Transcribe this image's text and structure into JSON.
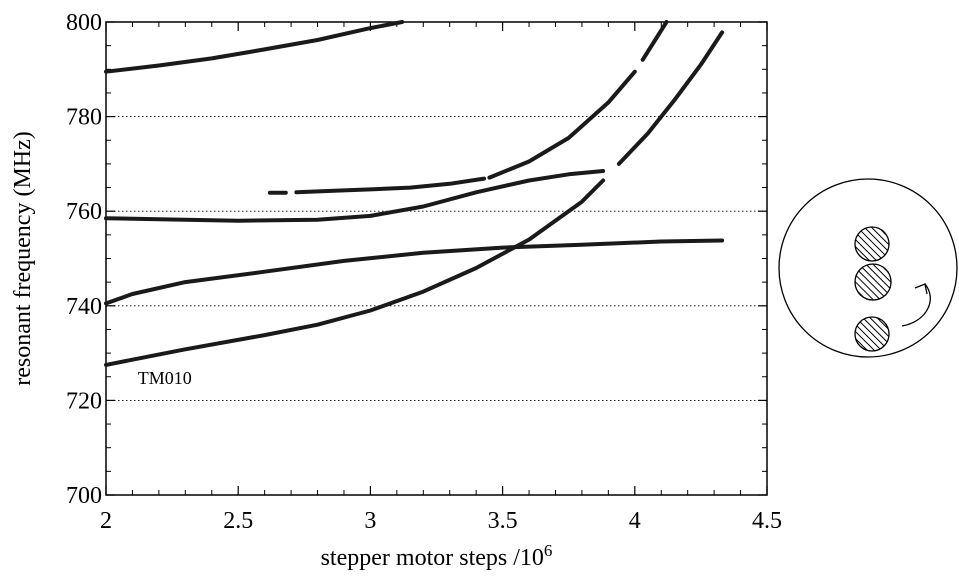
{
  "chart_data": {
    "type": "line",
    "xlabel": "stepper motor steps /10",
    "xlabel_exp": "6",
    "ylabel": "resonant frequency (MHz)",
    "xlim": [
      2,
      4.5
    ],
    "ylim": [
      700,
      800
    ],
    "grid": true,
    "x_ticks": [
      2,
      2.5,
      3,
      3.5,
      4,
      4.5
    ],
    "x_tick_labels": [
      "2",
      "2.5",
      "3",
      "3.5",
      "4",
      "4.5"
    ],
    "y_ticks": [
      700,
      720,
      740,
      760,
      780,
      800
    ],
    "y_tick_labels": [
      "700",
      "720",
      "740",
      "760",
      "780",
      "800"
    ],
    "annotations": [
      {
        "text": "TM010",
        "x": 2.12,
        "y": 723.5
      }
    ],
    "series": [
      {
        "segments": [
          [
            [
              2.0,
              789.5
            ],
            [
              2.2,
              790.8
            ],
            [
              2.4,
              792.3
            ],
            [
              2.6,
              794.2
            ],
            [
              2.8,
              796.2
            ],
            [
              3.0,
              798.7
            ],
            [
              3.12,
              800
            ]
          ]
        ]
      },
      {
        "segments": [
          [
            [
              2.62,
              763.9
            ],
            [
              2.68,
              763.9
            ]
          ],
          [
            [
              2.72,
              764.0
            ],
            [
              2.85,
              764.3
            ],
            [
              3.0,
              764.6
            ],
            [
              3.15,
              765.0
            ],
            [
              3.3,
              765.8
            ],
            [
              3.43,
              766.9
            ]
          ],
          [
            [
              3.45,
              767.1
            ],
            [
              3.6,
              770.5
            ],
            [
              3.75,
              775.5
            ],
            [
              3.9,
              783.0
            ],
            [
              4.0,
              789.5
            ]
          ],
          [
            [
              4.03,
              792.0
            ],
            [
              4.12,
              800
            ]
          ]
        ]
      },
      {
        "segments": [
          [
            [
              2.0,
              758.5
            ],
            [
              2.2,
              758.3
            ],
            [
              2.5,
              758.0
            ],
            [
              2.8,
              758.2
            ],
            [
              3.0,
              759.0
            ],
            [
              3.2,
              761.0
            ],
            [
              3.4,
              764.0
            ],
            [
              3.6,
              766.5
            ],
            [
              3.75,
              767.8
            ],
            [
              3.88,
              768.5
            ]
          ]
        ]
      },
      {
        "segments": [
          [
            [
              2.0,
              740.5
            ],
            [
              2.1,
              742.5
            ],
            [
              2.3,
              745.0
            ],
            [
              2.6,
              747.2
            ],
            [
              2.9,
              749.5
            ],
            [
              3.2,
              751.2
            ],
            [
              3.5,
              752.3
            ],
            [
              3.8,
              752.9
            ],
            [
              4.1,
              753.6
            ],
            [
              4.33,
              753.8
            ]
          ]
        ]
      },
      {
        "segments": [
          [
            [
              2.0,
              727.5
            ],
            [
              2.3,
              730.8
            ],
            [
              2.6,
              733.8
            ],
            [
              2.8,
              736.0
            ],
            [
              3.0,
              739.0
            ],
            [
              3.2,
              743.0
            ],
            [
              3.4,
              748.0
            ],
            [
              3.6,
              754.0
            ],
            [
              3.8,
              762.0
            ],
            [
              3.88,
              766.5
            ]
          ],
          [
            [
              3.94,
              770.0
            ],
            [
              4.05,
              776.5
            ],
            [
              4.15,
              783.5
            ],
            [
              4.25,
              791.0
            ],
            [
              4.33,
              797.8
            ]
          ]
        ]
      }
    ]
  },
  "inset": {
    "arrow_hint": "rotation"
  }
}
